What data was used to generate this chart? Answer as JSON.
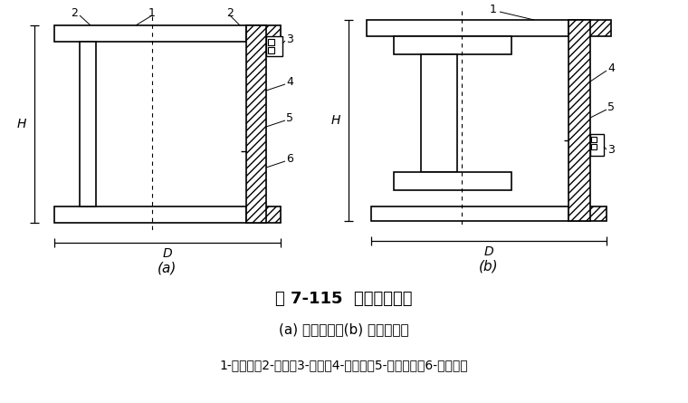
{
  "title": "图 7-115  锤击力传感器",
  "subtitle": "(a) 用于帽上；(b) 用于垫木上",
  "legend": "1-法兰盘；2-盖板；3-插座；4-电阻片；5-弹性元件；6-防水胶片",
  "fig_a_label": "(a)",
  "fig_b_label": "(b)",
  "H_label": "H",
  "D_label": "D",
  "bg_color": "#ffffff",
  "line_color": "#000000",
  "title_fontsize": 13,
  "subtitle_fontsize": 11,
  "legend_fontsize": 10
}
